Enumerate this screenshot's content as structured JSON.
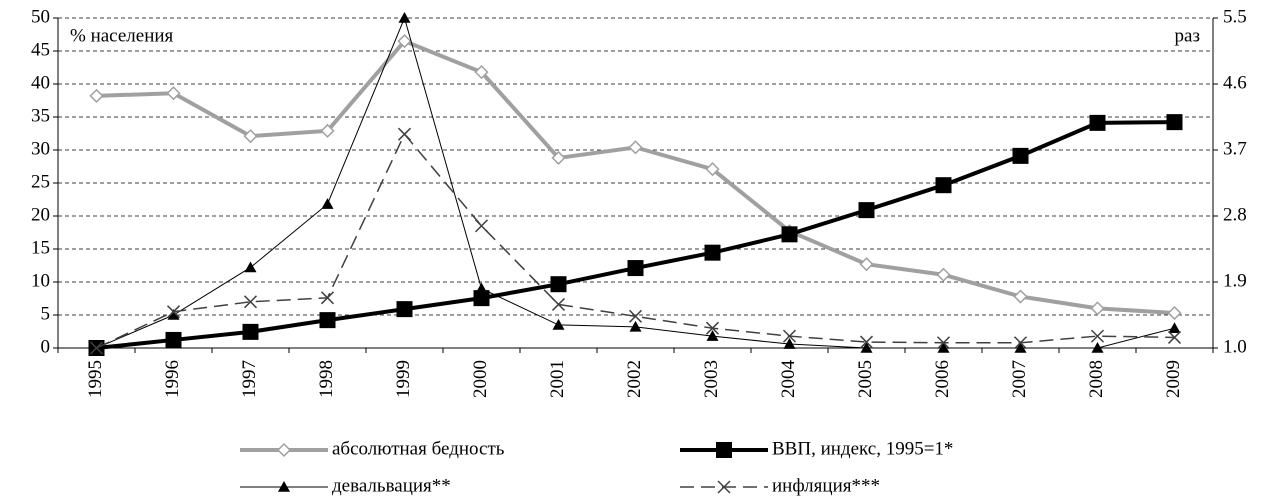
{
  "chart_data": {
    "type": "line",
    "annotations": [
      "% населения",
      "раз"
    ],
    "categories": [
      "1995",
      "1996",
      "1997",
      "1998",
      "1999",
      "2000",
      "2001",
      "2002",
      "2003",
      "2004",
      "2005",
      "2006",
      "2007",
      "2008",
      "2009"
    ],
    "ylim": [
      0,
      50
    ],
    "yticks": [
      0,
      5,
      10,
      15,
      20,
      25,
      30,
      35,
      40,
      45,
      50
    ],
    "y2lim": [
      1,
      5.5
    ],
    "y2ticks": [
      {
        "value": 1,
        "label": "1.0"
      },
      1.9,
      2.8,
      3.7,
      4.6,
      5.5
    ],
    "grid": true,
    "series": [
      {
        "name": "абсолютная бедность",
        "color": "#a0a0a0",
        "marker": "diamond",
        "dashed": false,
        "values": [
          38.2,
          38.6,
          32.1,
          32.9,
          46.5,
          41.8,
          28.8,
          30.4,
          27.1,
          17.7,
          12.7,
          11.1,
          7.8,
          6.0,
          5.3
        ]
      },
      {
        "name": "ВВП, индекс, 1995=1*",
        "color": "#000000",
        "marker": "square",
        "dashed": false,
        "axis": "y2",
        "values": [
          1.0,
          1.11,
          1.22,
          1.38,
          1.53,
          1.68,
          1.87,
          2.09,
          2.3,
          2.55,
          2.88,
          3.22,
          3.62,
          4.07,
          4.08
        ]
      },
      {
        "name": "девальвация**",
        "color": "#000000",
        "marker": "triangle",
        "dashed": false,
        "values": [
          0,
          5,
          12.2,
          21.8,
          50,
          9,
          3.5,
          3.2,
          1.8,
          0.6,
          0,
          0,
          0,
          0,
          3
        ]
      },
      {
        "name": "инфляция***",
        "color": "#404040",
        "marker": "x",
        "dashed": true,
        "values": [
          0,
          5.5,
          7,
          7.6,
          32.4,
          18.5,
          6.6,
          4.8,
          3.0,
          1.8,
          0.9,
          0.8,
          0.8,
          1.8,
          1.6
        ]
      }
    ]
  }
}
